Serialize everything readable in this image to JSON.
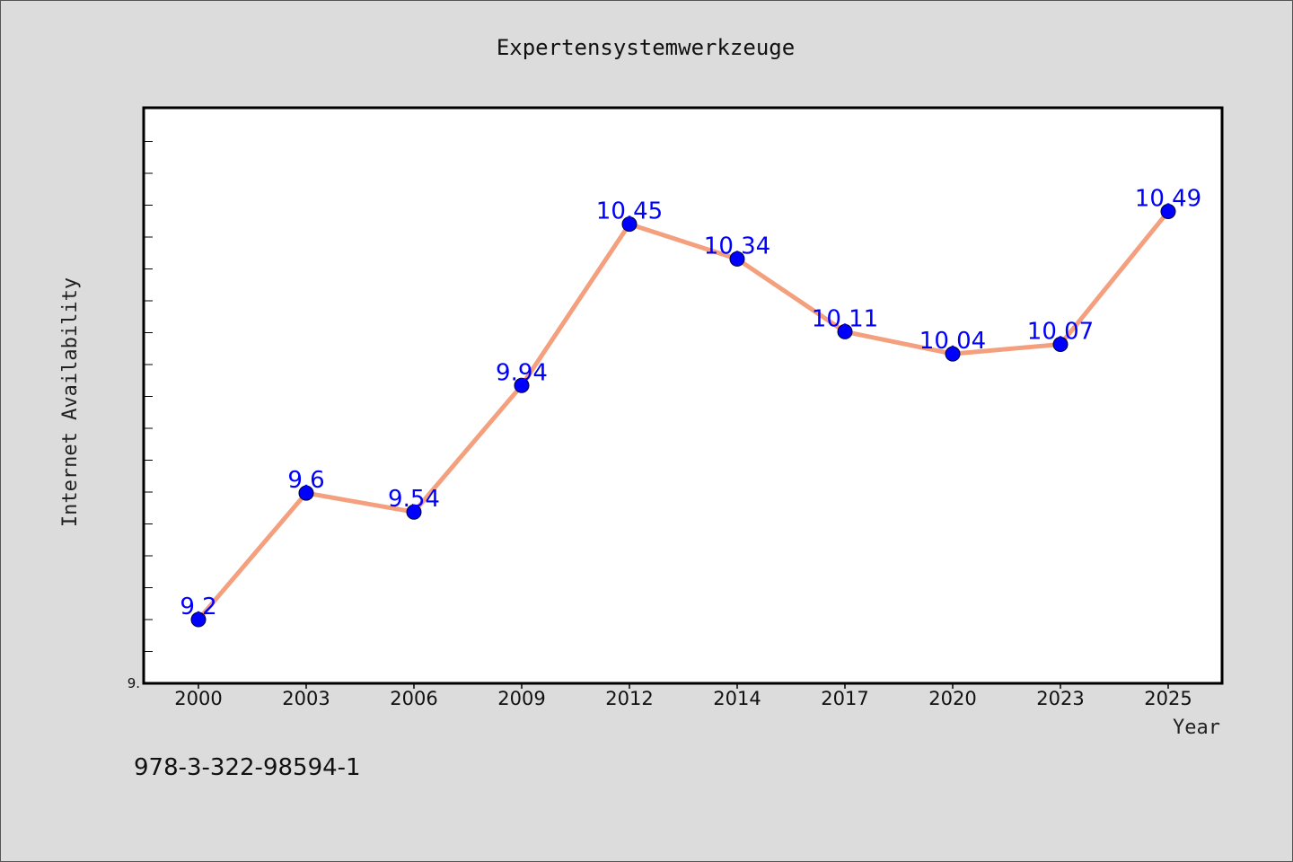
{
  "chart_data": {
    "type": "line",
    "title": "Expertensystemwerkzeuge",
    "xlabel": "Year",
    "ylabel": "Internet Availability",
    "categories": [
      "2000",
      "2003",
      "2006",
      "2009",
      "2012",
      "2014",
      "2017",
      "2020",
      "2023",
      "2025"
    ],
    "series": [
      {
        "values": [
          9.2,
          9.6,
          9.54,
          9.94,
          10.45,
          10.34,
          10.11,
          10.04,
          10.07,
          10.49
        ],
        "data_labels": [
          "9.2",
          "9.6",
          "9.54",
          "9.94",
          "10.45",
          "10.34",
          "10.11",
          "10.04",
          "10.07",
          "10.49"
        ],
        "line_color": "#f4a07e",
        "marker_color": "#0000ff"
      }
    ],
    "ytick_labels": [
      "9."
    ],
    "ylim": [
      9.0,
      10.8
    ],
    "grid": false,
    "legend": "none"
  },
  "footer_text": "978-3-322-98594-1",
  "colors": {
    "background": "#dcdcdc",
    "plot_background": "#ffffff",
    "data_label": "#0000ff"
  }
}
